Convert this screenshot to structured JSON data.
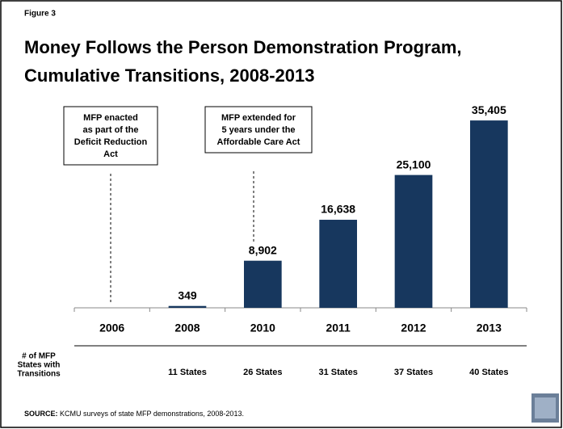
{
  "chart_data": {
    "type": "bar",
    "figure_label": "Figure 3",
    "title_lines": [
      "Money Follows the Person Demonstration Program,",
      "Cumulative Transitions, 2008-2013"
    ],
    "categories": [
      "2006",
      "2008",
      "2010",
      "2011",
      "2012",
      "2013"
    ],
    "values": [
      null,
      349,
      8902,
      16638,
      25100,
      35405
    ],
    "value_labels": [
      null,
      "349",
      "8,902",
      "16,638",
      "25,100",
      "35,405"
    ],
    "color": "#17375e",
    "ylim": [
      0,
      40000
    ],
    "annotations": [
      {
        "lines": [
          "MFP enacted",
          "as part of the",
          "Deficit Reduction",
          "Act"
        ]
      },
      {
        "lines": [
          "MFP extended for",
          "5 years under the",
          "Affordable Care Act"
        ]
      }
    ],
    "row_label": [
      "# of MFP",
      "States with",
      "Transitions"
    ],
    "states": [
      null,
      "11 States",
      "26 States",
      "31 States",
      "37 States",
      "40 States"
    ],
    "source_label": "SOURCE:",
    "source_text": " KCMU surveys of state MFP demonstrations, 2008-2013."
  }
}
